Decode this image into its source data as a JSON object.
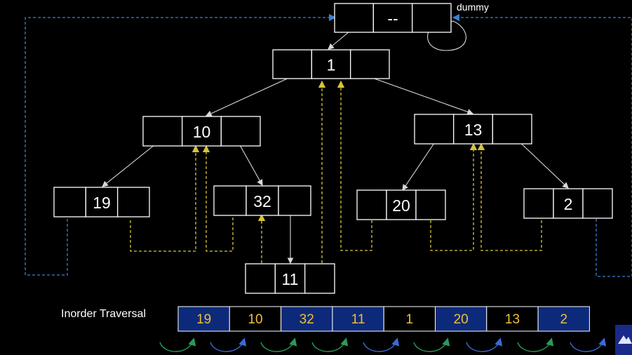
{
  "colors": {
    "background": "#000000",
    "node_border": "#ffffff",
    "child_edge": "#d8d8d8",
    "thread_edge": "#d6c43a",
    "outer_thread_edge": "#3a7fd6",
    "traversal_blue": "#0d2a7a",
    "traversal_black": "#000000",
    "traversal_text": "#f0c030",
    "arc_green": "#2a9a5a",
    "arc_blue": "#3a6ad6"
  },
  "dummy_label": "dummy",
  "nodes": [
    {
      "id": "dummy",
      "value": "--"
    },
    {
      "id": "n1",
      "value": "1"
    },
    {
      "id": "n10",
      "value": "10"
    },
    {
      "id": "n13",
      "value": "13"
    },
    {
      "id": "n19",
      "value": "19"
    },
    {
      "id": "n32",
      "value": "32"
    },
    {
      "id": "n20",
      "value": "20"
    },
    {
      "id": "n2",
      "value": "2"
    },
    {
      "id": "n11",
      "value": "11"
    }
  ],
  "traversal": {
    "label": "Inorder Traversal",
    "values": [
      "19",
      "10",
      "32",
      "11",
      "1",
      "20",
      "13",
      "2"
    ],
    "cell_styles": [
      "blue",
      "black",
      "blue",
      "blue",
      "black",
      "blue",
      "black",
      "blue"
    ],
    "arc_styles": [
      "green",
      "blue",
      "green",
      "green",
      "blue",
      "green",
      "blue",
      "green",
      "blue",
      "blue"
    ]
  },
  "logo_icon": "mountain-logo-icon"
}
